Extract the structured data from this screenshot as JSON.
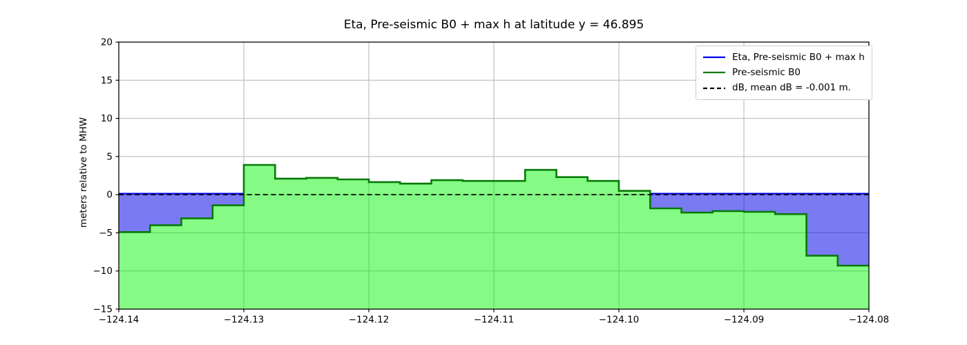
{
  "title": "Eta, Pre-seismic B0 + max h at latitude y = 46.895",
  "ylabel": "meters relative to MHW",
  "legend": {
    "position": "upper right",
    "items": [
      {
        "label": "Eta, Pre-seismic B0 + max h",
        "color": "#0000ee",
        "dash": "solid"
      },
      {
        "label": "Pre-seismic B0",
        "color": "#077a07",
        "dash": "solid"
      },
      {
        "label": "dB, mean dB = -0.001 m.",
        "color": "#000000",
        "dash": "dashed"
      }
    ]
  },
  "chart_data": {
    "type": "area",
    "title": "Eta, Pre-seismic B0 + max h at latitude y = 46.895",
    "xlabel": "",
    "ylabel": "meters relative to MHW",
    "xlim": [
      -124.14,
      -124.08
    ],
    "ylim": [
      -15,
      20
    ],
    "xtick_values": [
      -124.14,
      -124.13,
      -124.12,
      -124.11,
      -124.1,
      -124.09,
      -124.08
    ],
    "xtick_labels": [
      "−124.14",
      "−124.13",
      "−124.12",
      "−124.11",
      "−124.10",
      "−124.09",
      "−124.08"
    ],
    "ytick_values": [
      -15,
      -10,
      -5,
      0,
      5,
      10,
      15,
      20
    ],
    "ytick_labels": [
      "−15",
      "−10",
      "−5",
      "0",
      "5",
      "10",
      "15",
      "20"
    ],
    "grid": true,
    "grid_color": "#b4b4b4",
    "legend_position": "upper right",
    "step_edges": [
      -124.14,
      -124.1375,
      -124.135,
      -124.1325,
      -124.13,
      -124.1275,
      -124.125,
      -124.1225,
      -124.12,
      -124.1175,
      -124.115,
      -124.1125,
      -124.1075,
      -124.105,
      -124.1025,
      -124.1,
      -124.0975,
      -124.095,
      -124.0925,
      -124.09,
      -124.0875,
      -124.085,
      -124.0825,
      -124.08
    ],
    "series": [
      {
        "name": "Eta, Pre-seismic B0 + max h",
        "type": "step",
        "color": "#0000ee",
        "fill": "rgba(0,0,230,0.52)",
        "values": [
          0.15,
          0.15,
          0.15,
          0.15,
          3.9,
          2.1,
          2.2,
          2.0,
          1.65,
          1.45,
          1.9,
          1.8,
          3.25,
          2.3,
          1.8,
          0.5,
          0.15,
          0.15,
          0.15,
          0.15,
          0.15,
          0.15,
          0.15
        ]
      },
      {
        "name": "Pre-seismic B0",
        "type": "step",
        "color": "#077a07",
        "fill": "rgba(0,245,0,0.48)",
        "values": [
          -4.9,
          -4.0,
          -3.1,
          -1.4,
          3.9,
          2.1,
          2.2,
          2.0,
          1.65,
          1.45,
          1.9,
          1.8,
          3.25,
          2.3,
          1.8,
          0.5,
          -1.8,
          -2.35,
          -2.15,
          -2.25,
          -2.55,
          -8.0,
          -9.3
        ]
      },
      {
        "name": "dB, mean dB = -0.001 m.",
        "type": "hline",
        "color": "#000000",
        "style": "dashed",
        "value": -0.001
      }
    ]
  }
}
